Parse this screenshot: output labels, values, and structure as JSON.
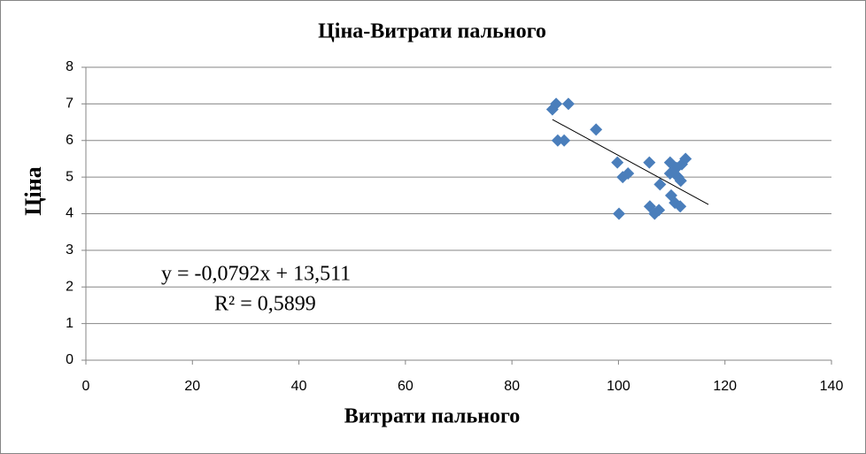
{
  "chart_data": {
    "type": "scatter",
    "title": "Ціна-Витрати пального",
    "x_label": "Витрати пального",
    "y_label": "Ціна",
    "color": "#4a7ebb",
    "grid": true,
    "x": [
      87.6,
      88.3,
      90.6,
      88.6,
      89.8,
      95.8,
      99.8,
      100.8,
      101.8,
      100.1,
      105.8,
      105.9,
      106.8,
      107.6,
      107.8,
      109.7,
      109.7,
      109.9,
      110.6,
      110.9,
      111.2,
      111.6,
      111.7,
      111.9,
      112.6
    ],
    "values": [
      6.85,
      7.0,
      7.0,
      6.0,
      6.0,
      6.3,
      5.4,
      5.0,
      5.1,
      4.0,
      5.4,
      4.2,
      4.0,
      4.1,
      4.8,
      5.4,
      5.1,
      4.5,
      4.3,
      5.25,
      5.0,
      4.2,
      4.9,
      5.35,
      5.5
    ],
    "xlim": [
      0,
      140
    ],
    "xticks": [
      0,
      20,
      40,
      60,
      80,
      100,
      120,
      140
    ],
    "ylim": [
      0,
      8
    ],
    "yticks": [
      0,
      1,
      2,
      3,
      4,
      5,
      6,
      7,
      8
    ],
    "trendline": {
      "slope": -0.0792,
      "intercept": 13.511,
      "x_range": [
        87.6,
        116.9
      ],
      "equation": "y = -0,0792x  + 13,511",
      "r2": 0.5899,
      "r2_label": "R² = 0,5899"
    }
  }
}
